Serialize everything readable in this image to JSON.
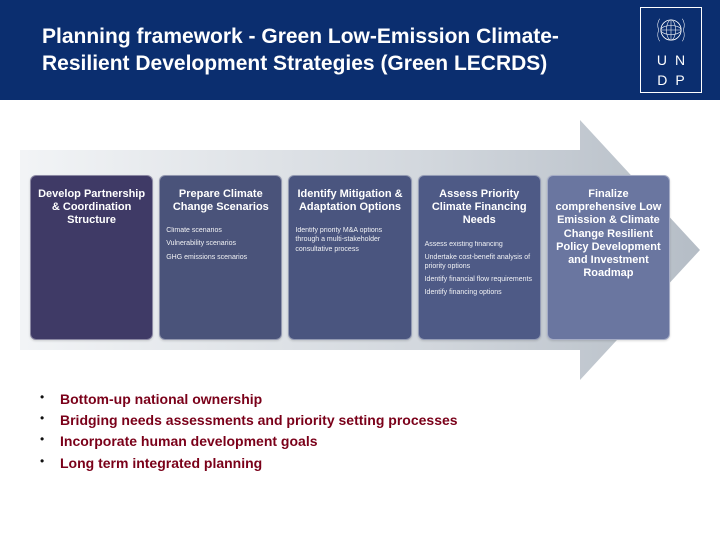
{
  "header": {
    "title": "Planning framework - Green Low-Emission Climate-Resilient Development Strategies (Green LECRDS)",
    "logo_line1_a": "U",
    "logo_line1_b": "N",
    "logo_line2_a": "D",
    "logo_line2_b": "P"
  },
  "arrow": {
    "fill_light": "#dfe4e8",
    "fill_mid": "#c6ccd2",
    "fill_dark": "#aeb6bf"
  },
  "stages": [
    {
      "title": "Develop Partnership & Coordination Structure",
      "bg": "#3f3a66",
      "items": []
    },
    {
      "title": "Prepare Climate Change Scenarios",
      "bg": "#4a537a",
      "items": [
        "Climate scenarios",
        "Vulnerability scenarios",
        "GHG emissions scenarios"
      ]
    },
    {
      "title": "Identify Mitigation & Adaptation Options",
      "bg": "#4a557f",
      "items": [
        "Identify priority M&A options through a multi-stakeholder consultative process"
      ]
    },
    {
      "title": "Assess Priority Climate Financing Needs",
      "bg": "#4e5a86",
      "items": [
        "Assess existing financing",
        "Undertake cost-benefit analysis of priority options",
        "Identify financial flow requirements",
        "Identify financing options"
      ]
    },
    {
      "title": "Finalize comprehensive Low Emission & Climate Change Resilient Policy Development and Investment Roadmap",
      "bg": "#6a76a0",
      "items": []
    }
  ],
  "bullets": [
    "Bottom-up national ownership",
    "Bridging needs assessments and priority setting processes",
    "Incorporate human development goals",
    "Long term integrated planning"
  ],
  "colors": {
    "header_bg": "#0b2e6f",
    "bullet_text": "#7a0019"
  }
}
